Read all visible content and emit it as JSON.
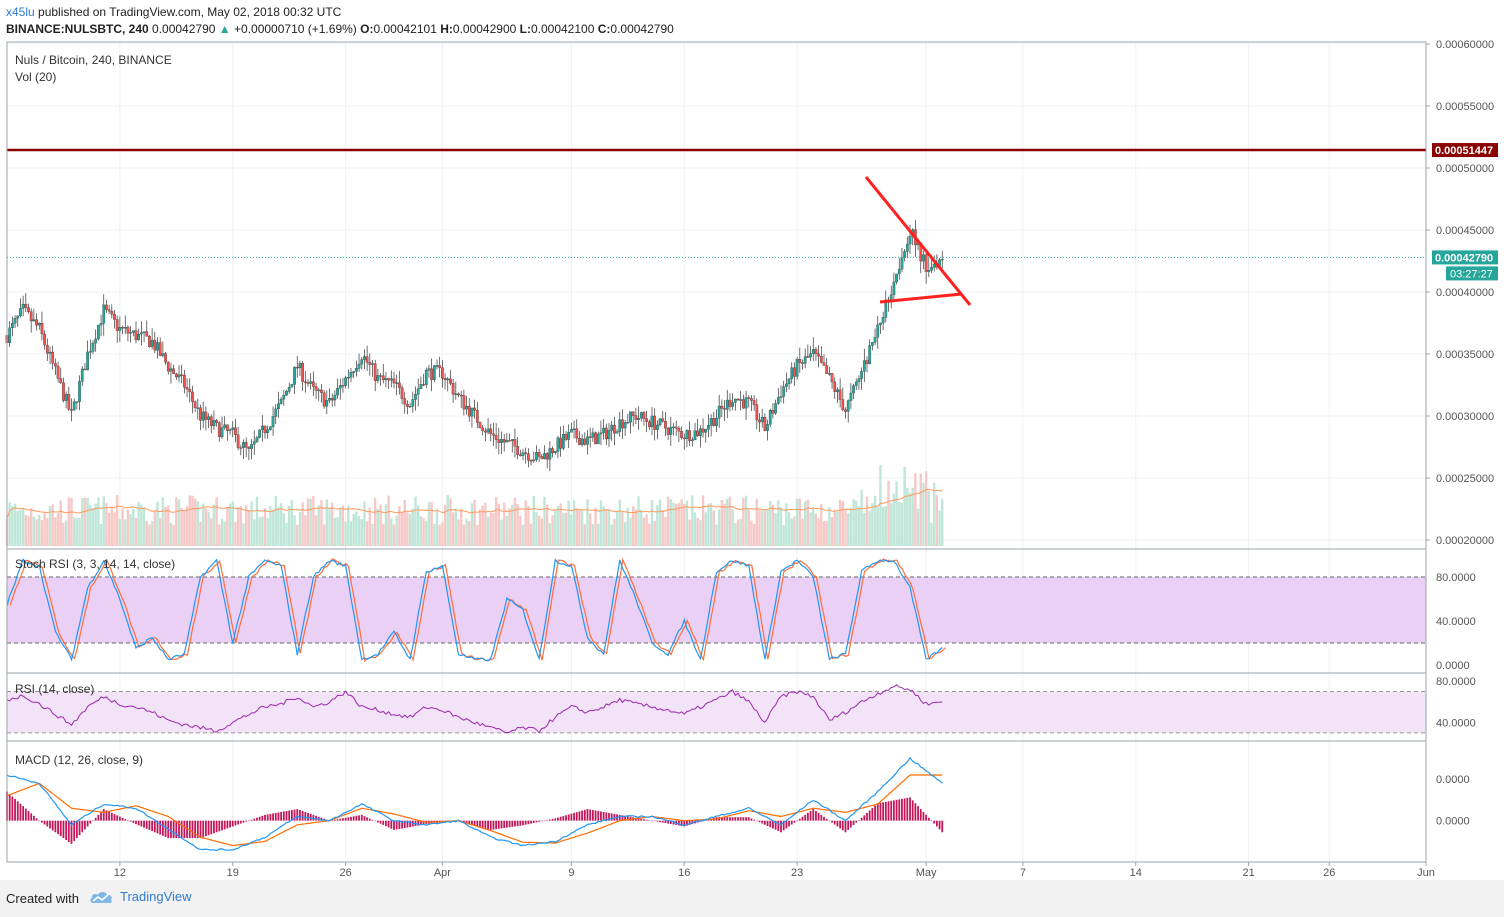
{
  "header": {
    "author": "x45lu",
    "published_text": "published on TradingView.com, May 02, 2018 00:32 UTC",
    "symbol_line": "BINANCE:NULSBTC, 240",
    "last": "0.00042790",
    "change_arrow": "▲",
    "change": "+0.00000710 (+1.69%)",
    "o_label": "O:",
    "o_value": "0.00042101",
    "h_label": "H:",
    "h_value": "0.00042900",
    "l_label": "L:",
    "l_value": "0.00042100",
    "c_label": "C:",
    "c_value": "0.00042790"
  },
  "footer": {
    "created_with": "Created with",
    "brand": "TradingView",
    "logo_icon": "tradingview-cloud-icon"
  },
  "colors": {
    "up": "#26a69a",
    "down": "#ef5350",
    "resistance": "#8b0000",
    "triangle": "#ff2020",
    "stoch_k": "#2196f3",
    "stoch_d": "#ff6d3a",
    "rsi": "#9c27b0",
    "macd_line": "#2196f3",
    "signal_line": "#ff6d00",
    "histogram": "#c2185b",
    "volume_ma": "#ff9a5a",
    "band_fill": "#e1bee7"
  },
  "chart_data": {
    "type": "candlestick",
    "title": "Nuls / Bitcoin, 240, BINANCE",
    "volume_label": "Vol (20)",
    "x_ticks": [
      {
        "label": "12",
        "date": "2018-03-12"
      },
      {
        "label": "19",
        "date": "2018-03-19"
      },
      {
        "label": "26",
        "date": "2018-03-26"
      },
      {
        "label": "Apr",
        "date": "2018-04-01"
      },
      {
        "label": "9",
        "date": "2018-04-09"
      },
      {
        "label": "16",
        "date": "2018-04-16"
      },
      {
        "label": "23",
        "date": "2018-04-23"
      },
      {
        "label": "May",
        "date": "2018-05-01"
      },
      {
        "label": "7",
        "date": "2018-05-07"
      },
      {
        "label": "14",
        "date": "2018-05-14"
      },
      {
        "label": "21",
        "date": "2018-05-21"
      },
      {
        "label": "26",
        "date": "2018-05-26"
      },
      {
        "label": "Jun",
        "date": "2018-06-01"
      }
    ],
    "x_range": [
      "2018-03-05",
      "2018-06-01"
    ],
    "price_axis": {
      "ticks": [
        "0.00060000",
        "0.00055000",
        "0.00050000",
        "0.00045000",
        "0.00040000",
        "0.00035000",
        "0.00030000",
        "0.00025000",
        "0.00020000"
      ],
      "range": [
        0.0002,
        0.0006
      ]
    },
    "price_path": [
      [
        "2018-03-05",
        0.000365
      ],
      [
        "2018-03-06",
        0.000385
      ],
      [
        "2018-03-07",
        0.00037
      ],
      [
        "2018-03-08",
        0.000335
      ],
      [
        "2018-03-09",
        0.0003
      ],
      [
        "2018-03-10",
        0.00035
      ],
      [
        "2018-03-11",
        0.000385
      ],
      [
        "2018-03-12",
        0.00037
      ],
      [
        "2018-03-13",
        0.000365
      ],
      [
        "2018-03-14",
        0.00036
      ],
      [
        "2018-03-15",
        0.00034
      ],
      [
        "2018-03-16",
        0.000325
      ],
      [
        "2018-03-17",
        0.0003
      ],
      [
        "2018-03-18",
        0.00029
      ],
      [
        "2018-03-19",
        0.000285
      ],
      [
        "2018-03-20",
        0.00027
      ],
      [
        "2018-03-21",
        0.00029
      ],
      [
        "2018-03-22",
        0.00031
      ],
      [
        "2018-03-23",
        0.00034
      ],
      [
        "2018-03-24",
        0.00032
      ],
      [
        "2018-03-25",
        0.00031
      ],
      [
        "2018-03-26",
        0.00033
      ],
      [
        "2018-03-27",
        0.00035
      ],
      [
        "2018-03-28",
        0.00033
      ],
      [
        "2018-03-29",
        0.000325
      ],
      [
        "2018-03-30",
        0.00031
      ],
      [
        "2018-03-31",
        0.000335
      ],
      [
        "2018-04-01",
        0.000335
      ],
      [
        "2018-04-02",
        0.000315
      ],
      [
        "2018-04-03",
        0.0003
      ],
      [
        "2018-04-04",
        0.000285
      ],
      [
        "2018-04-05",
        0.000278
      ],
      [
        "2018-04-06",
        0.000272
      ],
      [
        "2018-04-07",
        0.000265
      ],
      [
        "2018-04-08",
        0.000275
      ],
      [
        "2018-04-09",
        0.000285
      ],
      [
        "2018-04-10",
        0.00028
      ],
      [
        "2018-04-11",
        0.000285
      ],
      [
        "2018-04-12",
        0.000295
      ],
      [
        "2018-04-13",
        0.0003
      ],
      [
        "2018-04-14",
        0.000295
      ],
      [
        "2018-04-15",
        0.00029
      ],
      [
        "2018-04-16",
        0.000285
      ],
      [
        "2018-04-17",
        0.000288
      ],
      [
        "2018-04-18",
        0.0003
      ],
      [
        "2018-04-19",
        0.000315
      ],
      [
        "2018-04-20",
        0.00031
      ],
      [
        "2018-04-21",
        0.00029
      ],
      [
        "2018-04-22",
        0.00032
      ],
      [
        "2018-04-23",
        0.00034
      ],
      [
        "2018-04-24",
        0.00035
      ],
      [
        "2018-04-25",
        0.00033
      ],
      [
        "2018-04-26",
        0.000305
      ],
      [
        "2018-04-27",
        0.000335
      ],
      [
        "2018-04-28",
        0.00037
      ],
      [
        "2018-04-29",
        0.00041
      ],
      [
        "2018-04-30",
        0.00045
      ],
      [
        "2018-05-01",
        0.00042
      ],
      [
        "2018-05-02",
        0.0004279
      ]
    ],
    "last_price": {
      "value": 0.0004279,
      "label": "0.00042790",
      "countdown": "03:27:27"
    },
    "resistance": {
      "value": 0.00051447,
      "label": "0.00051447"
    },
    "triangle_drawing": {
      "points": [
        [
          "2018-04-30",
          0.00049
        ],
        [
          "2018-05-05",
          0.000395
        ],
        [
          "2018-04-29",
          0.00039
        ]
      ]
    },
    "volume": {
      "axis_ticks": [],
      "note": "bar heights are relative volume in shared price panel"
    },
    "stoch_rsi": {
      "label": "Stoch RSI (3, 3, 14, 14, close)",
      "ticks": [
        "80.0000",
        "40.0000",
        "0.0000"
      ],
      "upper": 80,
      "lower": 20,
      "range": [
        0,
        100
      ],
      "k_path": [
        [
          "2018-03-05",
          55
        ],
        [
          "2018-03-06",
          95
        ],
        [
          "2018-03-07",
          90
        ],
        [
          "2018-03-08",
          30
        ],
        [
          "2018-03-09",
          5
        ],
        [
          "2018-03-10",
          70
        ],
        [
          "2018-03-11",
          95
        ],
        [
          "2018-03-12",
          60
        ],
        [
          "2018-03-13",
          15
        ],
        [
          "2018-03-14",
          25
        ],
        [
          "2018-03-15",
          5
        ],
        [
          "2018-03-16",
          10
        ],
        [
          "2018-03-17",
          80
        ],
        [
          "2018-03-18",
          95
        ],
        [
          "2018-03-19",
          20
        ],
        [
          "2018-03-20",
          80
        ],
        [
          "2018-03-21",
          95
        ],
        [
          "2018-03-22",
          90
        ],
        [
          "2018-03-23",
          10
        ],
        [
          "2018-03-24",
          80
        ],
        [
          "2018-03-25",
          95
        ],
        [
          "2018-03-26",
          90
        ],
        [
          "2018-03-27",
          5
        ],
        [
          "2018-03-28",
          10
        ],
        [
          "2018-03-29",
          30
        ],
        [
          "2018-03-30",
          5
        ],
        [
          "2018-03-31",
          85
        ],
        [
          "2018-04-01",
          90
        ],
        [
          "2018-04-02",
          10
        ],
        [
          "2018-04-03",
          5
        ],
        [
          "2018-04-04",
          5
        ],
        [
          "2018-04-05",
          60
        ],
        [
          "2018-04-06",
          50
        ],
        [
          "2018-04-07",
          5
        ],
        [
          "2018-04-08",
          95
        ],
        [
          "2018-04-09",
          90
        ],
        [
          "2018-04-10",
          25
        ],
        [
          "2018-04-11",
          10
        ],
        [
          "2018-04-12",
          95
        ],
        [
          "2018-04-13",
          60
        ],
        [
          "2018-04-14",
          20
        ],
        [
          "2018-04-15",
          10
        ],
        [
          "2018-04-16",
          40
        ],
        [
          "2018-04-17",
          5
        ],
        [
          "2018-04-18",
          85
        ],
        [
          "2018-04-19",
          95
        ],
        [
          "2018-04-20",
          90
        ],
        [
          "2018-04-21",
          5
        ],
        [
          "2018-04-22",
          85
        ],
        [
          "2018-04-23",
          95
        ],
        [
          "2018-04-24",
          80
        ],
        [
          "2018-04-25",
          5
        ],
        [
          "2018-04-26",
          10
        ],
        [
          "2018-04-27",
          85
        ],
        [
          "2018-04-28",
          95
        ],
        [
          "2018-04-29",
          95
        ],
        [
          "2018-04-30",
          70
        ],
        [
          "2018-05-01",
          5
        ],
        [
          "2018-05-02",
          15
        ]
      ]
    },
    "rsi": {
      "label": "RSI (14, close)",
      "ticks": [
        "80.0000",
        "40.0000"
      ],
      "upper": 70,
      "lower": 30,
      "range": [
        25,
        85
      ],
      "path": [
        [
          "2018-03-05",
          62
        ],
        [
          "2018-03-06",
          66
        ],
        [
          "2018-03-07",
          58
        ],
        [
          "2018-03-08",
          48
        ],
        [
          "2018-03-09",
          38
        ],
        [
          "2018-03-10",
          55
        ],
        [
          "2018-03-11",
          65
        ],
        [
          "2018-03-12",
          58
        ],
        [
          "2018-03-13",
          55
        ],
        [
          "2018-03-14",
          50
        ],
        [
          "2018-03-15",
          42
        ],
        [
          "2018-03-16",
          38
        ],
        [
          "2018-03-17",
          35
        ],
        [
          "2018-03-18",
          32
        ],
        [
          "2018-03-19",
          40
        ],
        [
          "2018-03-20",
          48
        ],
        [
          "2018-03-21",
          55
        ],
        [
          "2018-03-22",
          58
        ],
        [
          "2018-03-23",
          65
        ],
        [
          "2018-03-24",
          55
        ],
        [
          "2018-03-25",
          60
        ],
        [
          "2018-03-26",
          70
        ],
        [
          "2018-03-27",
          55
        ],
        [
          "2018-03-28",
          52
        ],
        [
          "2018-03-29",
          48
        ],
        [
          "2018-03-30",
          45
        ],
        [
          "2018-03-31",
          55
        ],
        [
          "2018-04-01",
          52
        ],
        [
          "2018-04-02",
          45
        ],
        [
          "2018-04-03",
          40
        ],
        [
          "2018-04-04",
          35
        ],
        [
          "2018-04-05",
          30
        ],
        [
          "2018-04-06",
          35
        ],
        [
          "2018-04-07",
          32
        ],
        [
          "2018-04-08",
          45
        ],
        [
          "2018-04-09",
          55
        ],
        [
          "2018-04-10",
          50
        ],
        [
          "2018-04-11",
          55
        ],
        [
          "2018-04-12",
          62
        ],
        [
          "2018-04-13",
          58
        ],
        [
          "2018-04-14",
          55
        ],
        [
          "2018-04-15",
          52
        ],
        [
          "2018-04-16",
          48
        ],
        [
          "2018-04-17",
          55
        ],
        [
          "2018-04-18",
          62
        ],
        [
          "2018-04-19",
          70
        ],
        [
          "2018-04-20",
          60
        ],
        [
          "2018-04-21",
          40
        ],
        [
          "2018-04-22",
          65
        ],
        [
          "2018-04-23",
          70
        ],
        [
          "2018-04-24",
          65
        ],
        [
          "2018-04-25",
          42
        ],
        [
          "2018-04-26",
          50
        ],
        [
          "2018-04-27",
          60
        ],
        [
          "2018-04-28",
          68
        ],
        [
          "2018-04-29",
          75
        ],
        [
          "2018-04-30",
          72
        ],
        [
          "2018-05-01",
          58
        ],
        [
          "2018-05-02",
          60
        ]
      ]
    },
    "macd": {
      "label": "MACD (12, 26, close, 9)",
      "ticks": [
        "0.0000",
        "0.0000"
      ],
      "macd_path": [
        [
          "2018-03-05",
          0.55
        ],
        [
          "2018-03-07",
          0.45
        ],
        [
          "2018-03-09",
          -0.05
        ],
        [
          "2018-03-11",
          0.2
        ],
        [
          "2018-03-13",
          0.15
        ],
        [
          "2018-03-15",
          -0.1
        ],
        [
          "2018-03-17",
          -0.35
        ],
        [
          "2018-03-19",
          -0.35
        ],
        [
          "2018-03-21",
          -0.2
        ],
        [
          "2018-03-23",
          0.05
        ],
        [
          "2018-03-25",
          0.0
        ],
        [
          "2018-03-27",
          0.2
        ],
        [
          "2018-03-29",
          0.0
        ],
        [
          "2018-03-31",
          -0.05
        ],
        [
          "2018-04-02",
          0.0
        ],
        [
          "2018-04-04",
          -0.2
        ],
        [
          "2018-04-06",
          -0.3
        ],
        [
          "2018-04-08",
          -0.25
        ],
        [
          "2018-04-10",
          -0.05
        ],
        [
          "2018-04-12",
          0.05
        ],
        [
          "2018-04-14",
          0.05
        ],
        [
          "2018-04-16",
          -0.05
        ],
        [
          "2018-04-18",
          0.05
        ],
        [
          "2018-04-20",
          0.15
        ],
        [
          "2018-04-22",
          -0.05
        ],
        [
          "2018-04-24",
          0.25
        ],
        [
          "2018-04-26",
          0.0
        ],
        [
          "2018-04-28",
          0.35
        ],
        [
          "2018-04-30",
          0.75
        ],
        [
          "2018-05-02",
          0.45
        ]
      ],
      "signal_path": [
        [
          "2018-03-05",
          0.3
        ],
        [
          "2018-03-07",
          0.45
        ],
        [
          "2018-03-09",
          0.15
        ],
        [
          "2018-03-11",
          0.1
        ],
        [
          "2018-03-13",
          0.18
        ],
        [
          "2018-03-15",
          0.05
        ],
        [
          "2018-03-17",
          -0.2
        ],
        [
          "2018-03-19",
          -0.3
        ],
        [
          "2018-03-21",
          -0.25
        ],
        [
          "2018-03-23",
          -0.05
        ],
        [
          "2018-03-25",
          0.0
        ],
        [
          "2018-03-27",
          0.15
        ],
        [
          "2018-03-29",
          0.08
        ],
        [
          "2018-03-31",
          -0.02
        ],
        [
          "2018-04-02",
          0.0
        ],
        [
          "2018-04-04",
          -0.12
        ],
        [
          "2018-04-06",
          -0.26
        ],
        [
          "2018-04-08",
          -0.27
        ],
        [
          "2018-04-10",
          -0.15
        ],
        [
          "2018-04-12",
          0.0
        ],
        [
          "2018-04-14",
          0.05
        ],
        [
          "2018-04-16",
          0.0
        ],
        [
          "2018-04-18",
          0.02
        ],
        [
          "2018-04-20",
          0.12
        ],
        [
          "2018-04-22",
          0.05
        ],
        [
          "2018-04-24",
          0.15
        ],
        [
          "2018-04-26",
          0.1
        ],
        [
          "2018-04-28",
          0.2
        ],
        [
          "2018-04-30",
          0.55
        ],
        [
          "2018-05-02",
          0.55
        ]
      ],
      "range": [
        -0.45,
        0.9
      ]
    }
  }
}
